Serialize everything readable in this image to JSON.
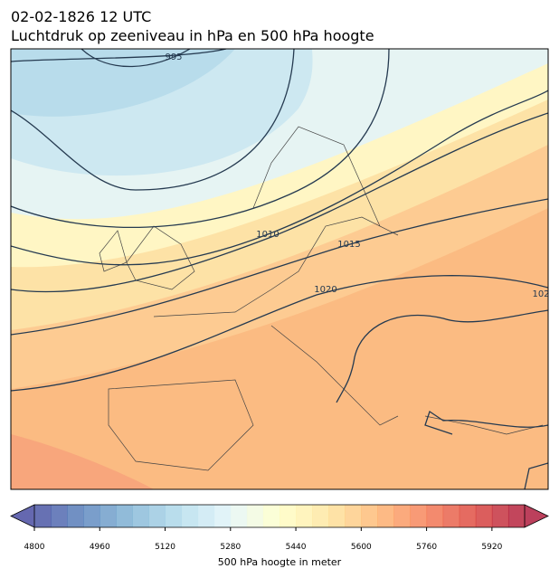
{
  "header": {
    "date": "02-02-1826 12 UTC",
    "title": "Luchtdruk op zeeniveau in hPa en 500 hPa hoogte"
  },
  "map": {
    "contour_labels": [
      "995",
      "1010",
      "1015",
      "1020",
      "102"
    ]
  },
  "colorbar": {
    "lim": [
      4800,
      6000
    ],
    "step": 40,
    "ticks": [
      4800,
      4960,
      5120,
      5280,
      5440,
      5600,
      5760,
      5920
    ],
    "label": "500 hPa hoogte in meter"
  }
}
